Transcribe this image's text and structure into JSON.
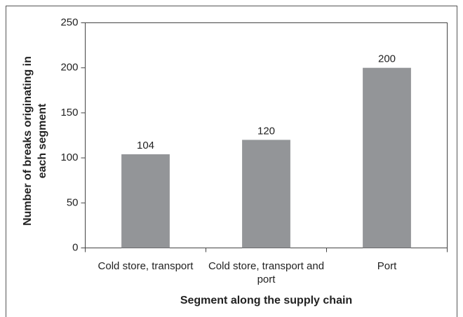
{
  "chart_data": {
    "type": "bar",
    "xlabel": "Segment along the supply chain",
    "ylabel": "Number of breaks originating in each segment",
    "categories": [
      "Cold store, transport",
      "Cold store, transport and port",
      "Port"
    ],
    "values": [
      104,
      120,
      200
    ],
    "color": "#939598",
    "ylim": [
      0,
      250
    ],
    "yticks": [
      0,
      50,
      100,
      150,
      200,
      250
    ]
  }
}
